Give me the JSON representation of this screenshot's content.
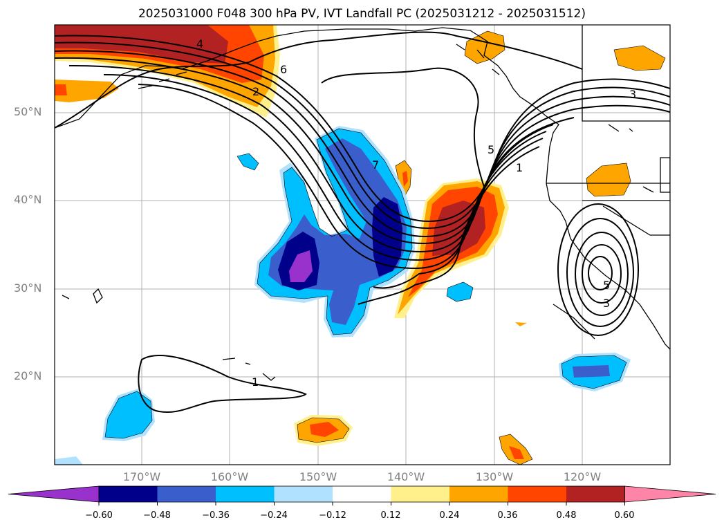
{
  "title": "2025031000 F048 300 hPa PV, IVT Landfall PC (2025031212 - 2025031512)",
  "map": {
    "lat_labels": [
      "50°N",
      "40°N",
      "30°N",
      "20°N"
    ],
    "lon_labels": [
      "170°W",
      "160°W",
      "150°W",
      "140°W",
      "130°W",
      "120°W"
    ]
  },
  "contour_labels": [
    "4",
    "6",
    "2",
    "7",
    "5",
    "1",
    "3",
    "5",
    "3",
    "1"
  ],
  "colorbar": {
    "ticks": [
      "−0.60",
      "−0.48",
      "−0.36",
      "−0.24",
      "−0.12",
      "0.12",
      "0.24",
      "0.36",
      "0.48",
      "0.60"
    ],
    "colors": [
      "#9932cc",
      "#00008b",
      "#3a5fcd",
      "#00bfff",
      "#b0e2ff",
      "#ffffff",
      "#fff08c",
      "#ffa500",
      "#ff4500",
      "#b22222",
      "#ff85a8"
    ]
  }
}
